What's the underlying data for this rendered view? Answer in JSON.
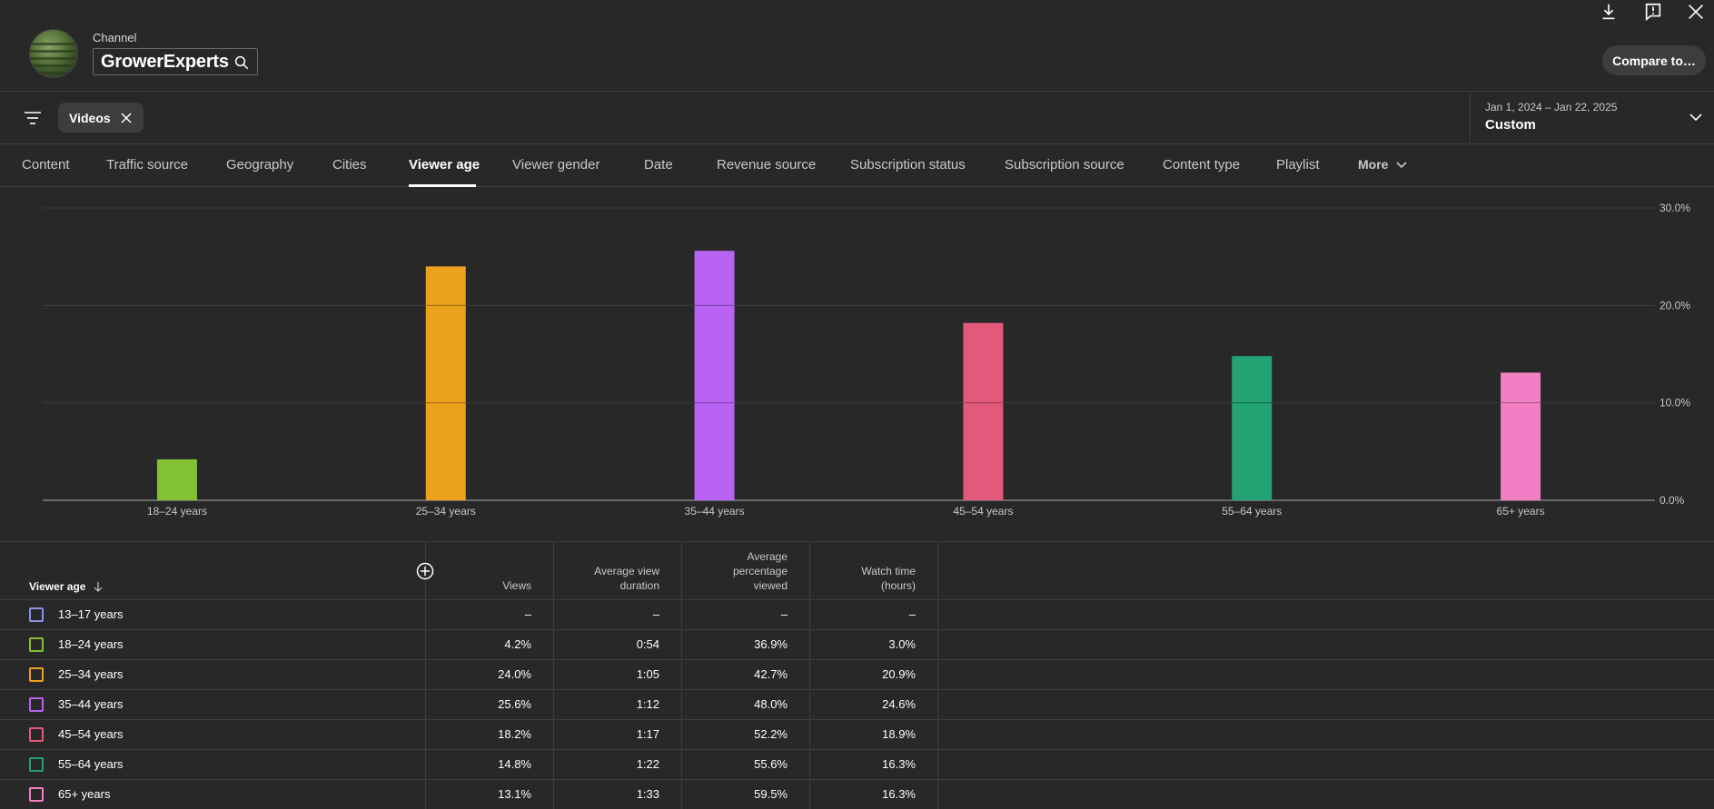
{
  "header": {
    "channel_label": "Channel",
    "channel_name": "GrowerExperts",
    "compare_label": "Compare to…"
  },
  "filters": {
    "chip_label": "Videos",
    "date_range": "Jan 1, 2024 – Jan 22, 2025",
    "date_preset": "Custom"
  },
  "tabs": [
    {
      "label": "Content"
    },
    {
      "label": "Traffic source"
    },
    {
      "label": "Geography"
    },
    {
      "label": "Cities"
    },
    {
      "label": "Viewer age"
    },
    {
      "label": "Viewer gender"
    },
    {
      "label": "Date"
    },
    {
      "label": "Revenue source"
    },
    {
      "label": "Subscription status"
    },
    {
      "label": "Subscription source"
    },
    {
      "label": "Content type"
    },
    {
      "label": "Playlist"
    },
    {
      "label": "More"
    }
  ],
  "chart_data": {
    "type": "bar",
    "categories": [
      "18–24 years",
      "25–34 years",
      "35–44 years",
      "45–54 years",
      "55–64 years",
      "65+ years"
    ],
    "values": [
      4.2,
      24.0,
      25.6,
      18.2,
      14.8,
      13.1
    ],
    "colors": [
      "#82c233",
      "#eba11b",
      "#b863f2",
      "#e3597b",
      "#23a273",
      "#f27fc4"
    ],
    "ylim": [
      0,
      30
    ],
    "yticks": [
      "0.0%",
      "10.0%",
      "20.0%",
      "30.0%"
    ],
    "grid": true
  },
  "table": {
    "headers": {
      "age": "Viewer age",
      "views": "Views",
      "avg_view_duration": [
        "Average view",
        "duration"
      ],
      "avg_pct_viewed": [
        "Average",
        "percentage",
        "viewed"
      ],
      "watch_time": [
        "Watch time",
        "(hours)"
      ]
    },
    "rows": [
      {
        "label": "13–17 years",
        "views": "–",
        "duration": "–",
        "pct": "–",
        "watch": "–",
        "color": "#8a93e8"
      },
      {
        "label": "18–24 years",
        "views": "4.2%",
        "duration": "0:54",
        "pct": "36.9%",
        "watch": "3.0%",
        "color": "#82c233"
      },
      {
        "label": "25–34 years",
        "views": "24.0%",
        "duration": "1:05",
        "pct": "42.7%",
        "watch": "20.9%",
        "color": "#eba11b"
      },
      {
        "label": "35–44 years",
        "views": "25.6%",
        "duration": "1:12",
        "pct": "48.0%",
        "watch": "24.6%",
        "color": "#b863f2"
      },
      {
        "label": "45–54 years",
        "views": "18.2%",
        "duration": "1:17",
        "pct": "52.2%",
        "watch": "18.9%",
        "color": "#e3597b"
      },
      {
        "label": "55–64 years",
        "views": "14.8%",
        "duration": "1:22",
        "pct": "55.6%",
        "watch": "16.3%",
        "color": "#23a273"
      },
      {
        "label": "65+ years",
        "views": "13.1%",
        "duration": "1:33",
        "pct": "59.5%",
        "watch": "16.3%",
        "color": "#f27fc4"
      }
    ]
  }
}
